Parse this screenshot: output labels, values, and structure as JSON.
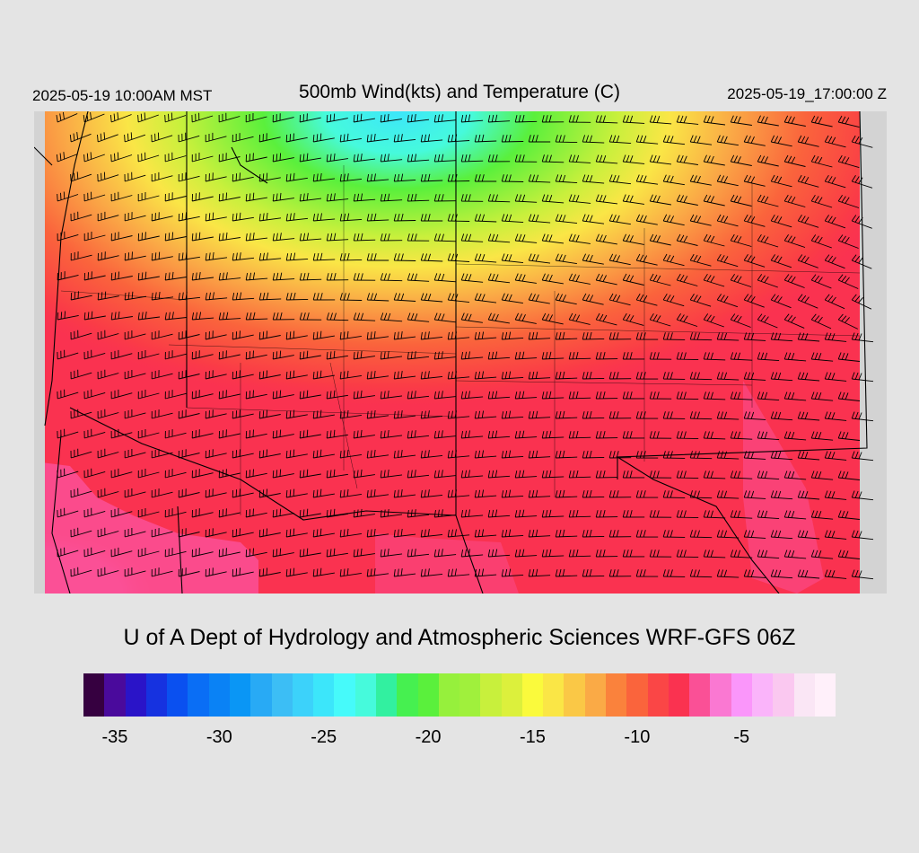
{
  "header": {
    "local_time": "2025-05-19 10:00AM MST",
    "title": "500mb Wind(kts) and Temperature (C)",
    "utc_time": "2025-05-19_17:00:00 Z"
  },
  "footer": {
    "credit": "U of A Dept of Hydrology and Atmospheric Sciences WRF-GFS 06Z"
  },
  "colorbar": {
    "min": -36,
    "max": -1,
    "colors": [
      "#360040",
      "#4a0a9c",
      "#2a14c8",
      "#1632e0",
      "#0a50f0",
      "#0a6ef5",
      "#0a82f5",
      "#0a96f5",
      "#28aaf5",
      "#3cbef5",
      "#3cd2fa",
      "#3ce6fa",
      "#46fafa",
      "#46fadc",
      "#32f0a0",
      "#46f050",
      "#5af03c",
      "#96f03c",
      "#a0f03c",
      "#c8f03c",
      "#dcf03c",
      "#fafa3c",
      "#fae646",
      "#fac846",
      "#faaa46",
      "#fa823c",
      "#fa643c",
      "#fa4646",
      "#fa3250",
      "#fa5096",
      "#fa78d2",
      "#fa96fa",
      "#fab4fa",
      "#fac8f0",
      "#fae6f5",
      "#fff0fa"
    ],
    "tick_labels": [
      "-35",
      "-30",
      "-25",
      "-20",
      "-15",
      "-10",
      "-5"
    ],
    "tick_values": [
      -35,
      -30,
      -25,
      -20,
      -15,
      -10,
      -5
    ]
  },
  "map": {
    "field": "500mb temperature (C) with wind barbs (kts)",
    "palette_notes": {
      "cold_core": "#46f050",
      "warm_south": "#fa3250",
      "warmest": "#fa5096",
      "missing": "#d3d3d3"
    }
  }
}
